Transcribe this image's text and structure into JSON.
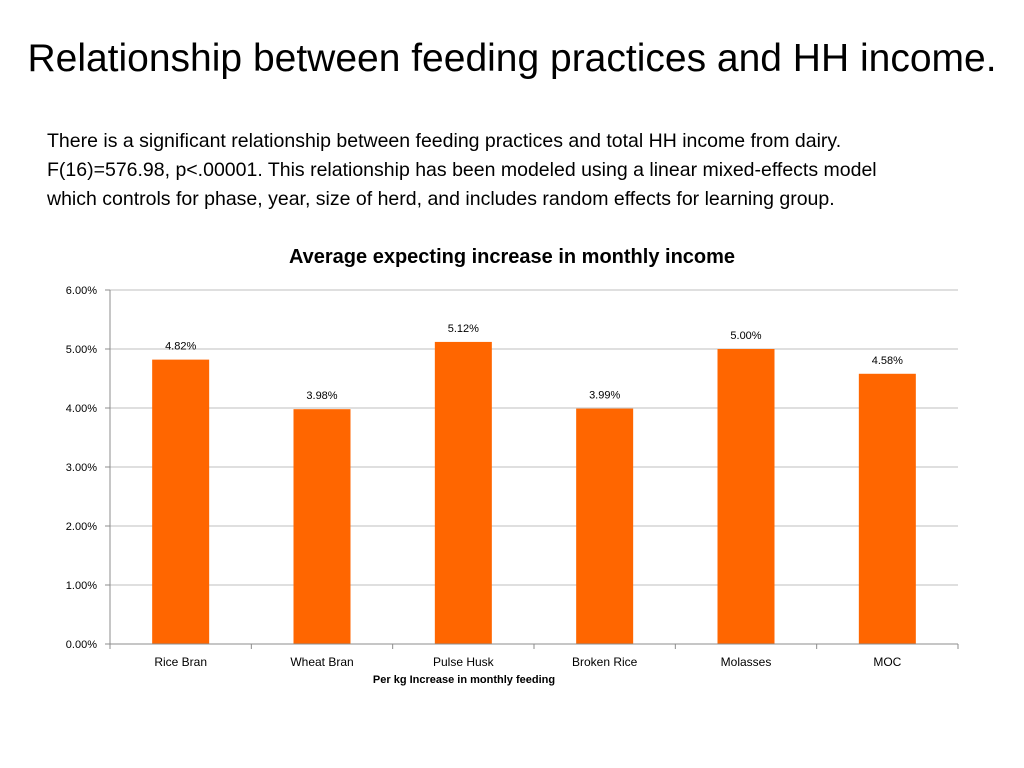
{
  "slide": {
    "title": "Relationship between feeding practices and HH income.",
    "body_lines": [
      "There is a significant relationship between feeding practices and total HH income from dairy.",
      "F(16)=576.98, p<.00001.  This relationship has been modeled using a linear mixed-effects model",
      "which controls for phase, year, size of herd, and includes random effects for learning group."
    ]
  },
  "chart_data": {
    "type": "bar",
    "title": "Average expecting increase in monthly income",
    "xlabel": "Per kg Increase in monthly feeding",
    "ylabel": "",
    "categories": [
      "Rice Bran",
      "Wheat Bran",
      "Pulse Husk",
      "Broken Rice",
      "Molasses",
      "MOC"
    ],
    "values": [
      4.82,
      3.98,
      5.12,
      3.99,
      5.0,
      4.58
    ],
    "data_labels": [
      "4.82%",
      "3.98%",
      "5.12%",
      "3.99%",
      "5.00%",
      "4.58%"
    ],
    "ylim": [
      0,
      6
    ],
    "yticks": [
      0,
      1,
      2,
      3,
      4,
      5,
      6
    ],
    "ytick_labels": [
      "0.00%",
      "1.00%",
      "2.00%",
      "3.00%",
      "4.00%",
      "5.00%",
      "6.00%"
    ],
    "grid": true,
    "legend": "none",
    "bar_color": "#FF6600",
    "grid_color": "#BFBFBF"
  }
}
